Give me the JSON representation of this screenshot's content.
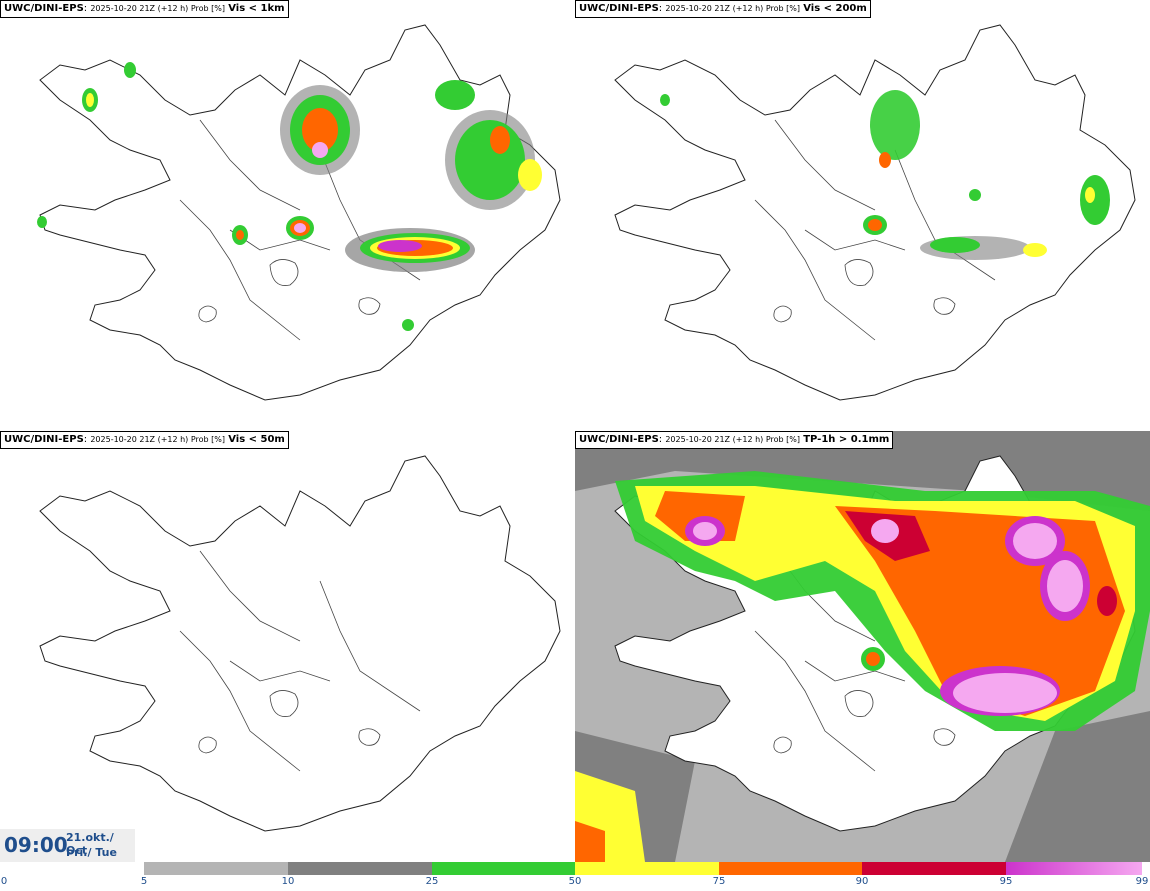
{
  "panels": [
    {
      "model": "UWC/DINI-EPS",
      "run": "2025-10-20 21Z (+12 h) Prob [%]",
      "variable": "Vis < 1km"
    },
    {
      "model": "UWC/DINI-EPS",
      "run": "2025-10-20 21Z (+12 h) Prob [%]",
      "variable": "Vis < 200m"
    },
    {
      "model": "UWC/DINI-EPS",
      "run": "2025-10-20 21Z (+12 h) Prob [%]",
      "variable": "Vis < 50m"
    },
    {
      "model": "UWC/DINI-EPS",
      "run": "2025-10-20 21Z (+12 h) Prob [%]",
      "variable": "TP-1h > 0.1mm"
    }
  ],
  "valid_time": {
    "time": "09:00",
    "date": "21.okt./ Oct",
    "day": "Þri./ Tue"
  },
  "colorbar": {
    "ticks": [
      "0",
      "5",
      "10",
      "25",
      "50",
      "75",
      "90",
      "95",
      "99"
    ],
    "colors": [
      "#ffffff",
      "#b4b4b4",
      "#808080",
      "#33cc33",
      "#ffff33",
      "#ff6600",
      "#cc0033",
      "#cc33cc",
      "#f5a8f0"
    ]
  }
}
